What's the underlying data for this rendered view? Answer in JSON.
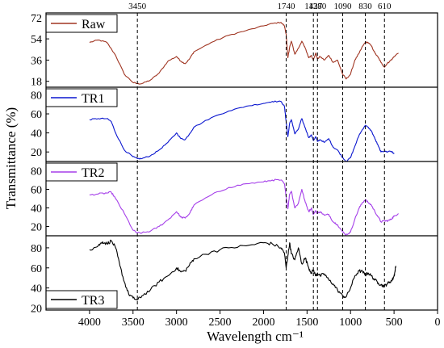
{
  "chart_data": {
    "type": "line",
    "title": "",
    "xlabel": "Wavelength cm⁻¹",
    "ylabel": "Transmittance (%)",
    "xlim": [
      4500,
      0
    ],
    "x_ticks": [
      4000,
      3500,
      3000,
      2500,
      2000,
      1500,
      1000,
      500,
      0
    ],
    "markers": [
      {
        "x": 3450,
        "label": "3450"
      },
      {
        "x": 1740,
        "label": "1740"
      },
      {
        "x": 1427,
        "label": "1427"
      },
      {
        "x": 1380,
        "label": "1380"
      },
      {
        "x": 1090,
        "label": "1090"
      },
      {
        "x": 830,
        "label": "830"
      },
      {
        "x": 610,
        "label": "610"
      }
    ],
    "panels": [
      {
        "name": "Raw",
        "color": "#a03522",
        "ylim": [
          13,
          76
        ],
        "y_ticks": [
          18,
          36,
          54,
          72
        ],
        "y_tick_labels": [
          "18",
          "36",
          "54",
          "72"
        ],
        "x": [
          4000,
          3900,
          3800,
          3700,
          3600,
          3500,
          3450,
          3400,
          3300,
          3200,
          3100,
          3000,
          2950,
          2900,
          2850,
          2800,
          2600,
          2400,
          2200,
          2000,
          1900,
          1800,
          1760,
          1740,
          1720,
          1700,
          1680,
          1640,
          1600,
          1560,
          1520,
          1480,
          1450,
          1427,
          1400,
          1380,
          1350,
          1300,
          1250,
          1200,
          1150,
          1090,
          1050,
          1000,
          950,
          900,
          860,
          830,
          800,
          760,
          720,
          680,
          650,
          610,
          580,
          550,
          520,
          500,
          450
        ],
        "values": [
          51,
          53,
          51,
          40,
          24,
          17,
          16,
          16,
          19,
          25,
          35,
          39,
          35,
          33,
          37,
          43,
          51,
          57,
          61,
          65,
          67,
          68,
          65,
          58,
          38,
          47,
          52,
          41,
          46,
          52,
          46,
          38,
          40,
          36,
          42,
          37,
          39,
          36,
          40,
          34,
          36,
          24,
          20,
          24,
          36,
          42,
          48,
          51,
          51,
          48,
          42,
          38,
          34,
          30,
          33,
          35,
          37,
          39,
          42
        ]
      },
      {
        "name": "TR1",
        "color": "#0a16cf",
        "ylim": [
          10,
          88
        ],
        "y_ticks": [
          20,
          40,
          60,
          80
        ],
        "y_tick_labels": [
          "20",
          "40",
          "60",
          "80"
        ],
        "x": [
          4000,
          3900,
          3800,
          3750,
          3700,
          3600,
          3500,
          3450,
          3400,
          3300,
          3200,
          3100,
          3000,
          2950,
          2900,
          2850,
          2800,
          2600,
          2400,
          2200,
          2000,
          1900,
          1800,
          1760,
          1740,
          1720,
          1700,
          1680,
          1640,
          1600,
          1560,
          1520,
          1480,
          1450,
          1427,
          1400,
          1380,
          1350,
          1300,
          1250,
          1200,
          1150,
          1090,
          1050,
          1000,
          950,
          900,
          860,
          830,
          800,
          760,
          720,
          680,
          650,
          610,
          580,
          550,
          520,
          500
        ],
        "values": [
          54,
          55,
          55,
          52,
          40,
          22,
          15,
          13,
          13,
          16,
          22,
          30,
          40,
          34,
          33,
          39,
          46,
          56,
          63,
          68,
          71,
          73,
          73,
          68,
          52,
          36,
          50,
          54,
          39,
          44,
          55,
          45,
          35,
          38,
          32,
          36,
          31,
          33,
          30,
          34,
          25,
          22,
          14,
          10,
          14,
          26,
          38,
          44,
          48,
          46,
          42,
          34,
          26,
          20,
          21,
          20,
          21,
          20,
          18
        ]
      },
      {
        "name": "TR2",
        "color": "#a53fe9",
        "ylim": [
          10,
          90
        ],
        "y_ticks": [
          20,
          40,
          60,
          80
        ],
        "y_tick_labels": [
          "20",
          "40",
          "60",
          "80"
        ],
        "x": [
          4000,
          3900,
          3800,
          3750,
          3700,
          3600,
          3500,
          3450,
          3400,
          3300,
          3200,
          3100,
          3000,
          2950,
          2900,
          2850,
          2800,
          2600,
          2400,
          2200,
          2000,
          1900,
          1800,
          1760,
          1740,
          1720,
          1700,
          1680,
          1640,
          1600,
          1560,
          1520,
          1480,
          1450,
          1427,
          1400,
          1380,
          1350,
          1300,
          1250,
          1200,
          1150,
          1090,
          1050,
          1000,
          950,
          900,
          860,
          830,
          800,
          760,
          720,
          680,
          650,
          610,
          580,
          550,
          520,
          500,
          450
        ],
        "values": [
          54,
          55,
          56,
          57,
          50,
          34,
          16,
          13,
          13,
          15,
          20,
          27,
          36,
          30,
          29,
          34,
          43,
          54,
          62,
          66,
          68,
          70,
          70,
          66,
          52,
          39,
          55,
          58,
          40,
          45,
          60,
          46,
          36,
          40,
          33,
          37,
          34,
          36,
          32,
          33,
          25,
          22,
          14,
          11,
          14,
          28,
          40,
          46,
          49,
          46,
          43,
          36,
          30,
          25,
          26,
          26,
          27,
          29,
          31,
          34
        ]
      },
      {
        "name": "TR3",
        "color": "#000000",
        "ylim": [
          18,
          92
        ],
        "y_ticks": [
          20,
          40,
          60,
          80
        ],
        "y_tick_labels": [
          "20",
          "40",
          "60",
          "80"
        ],
        "x": [
          4000,
          3900,
          3850,
          3800,
          3750,
          3700,
          3650,
          3600,
          3550,
          3500,
          3450,
          3400,
          3300,
          3200,
          3100,
          3000,
          2950,
          2900,
          2850,
          2800,
          2600,
          2400,
          2200,
          2000,
          1900,
          1800,
          1760,
          1740,
          1720,
          1700,
          1680,
          1640,
          1600,
          1560,
          1520,
          1480,
          1450,
          1427,
          1400,
          1380,
          1350,
          1300,
          1250,
          1200,
          1150,
          1090,
          1050,
          1000,
          950,
          900,
          860,
          830,
          800,
          760,
          720,
          680,
          650,
          610,
          580,
          550,
          520,
          500,
          490,
          480
        ],
        "values": [
          78,
          82,
          86,
          84,
          87,
          80,
          62,
          46,
          34,
          30,
          28,
          32,
          38,
          46,
          52,
          60,
          56,
          57,
          63,
          69,
          76,
          80,
          82,
          85,
          84,
          80,
          75,
          60,
          72,
          85,
          74,
          68,
          80,
          64,
          70,
          60,
          55,
          58,
          52,
          55,
          52,
          54,
          48,
          44,
          38,
          32,
          31,
          40,
          52,
          57,
          56,
          53,
          55,
          52,
          48,
          45,
          43,
          42,
          44,
          46,
          48,
          52,
          56,
          62
        ]
      }
    ]
  }
}
